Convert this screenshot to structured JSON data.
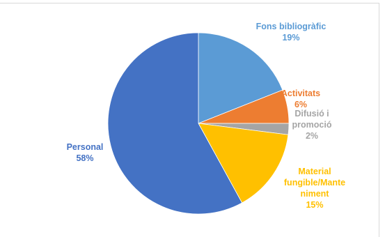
{
  "chart_data": {
    "type": "pie",
    "title": "",
    "categories": [
      "Fons bibliogràfic",
      "Activitats",
      "Difusió i promoció",
      "Material fungible/Manteniment",
      "Personal"
    ],
    "values": [
      19,
      6,
      2,
      15,
      58
    ],
    "series": [
      {
        "values": [
          19,
          6,
          2,
          15,
          58
        ]
      }
    ],
    "label_lines": [
      [
        "Fons bibliogràfic",
        "19%"
      ],
      [
        "Activitats",
        "6%"
      ],
      [
        "Difusió i",
        "promoció",
        "2%"
      ],
      [
        "Material",
        "fungible/Mante",
        "niment",
        "15%"
      ],
      [
        "Personal",
        "58%"
      ]
    ],
    "colors": [
      "#5B9BD5",
      "#ED7D31",
      "#A5A5A5",
      "#FFC000",
      "#4472C4"
    ],
    "legend": "none",
    "border_color": "#d9d9d9"
  }
}
